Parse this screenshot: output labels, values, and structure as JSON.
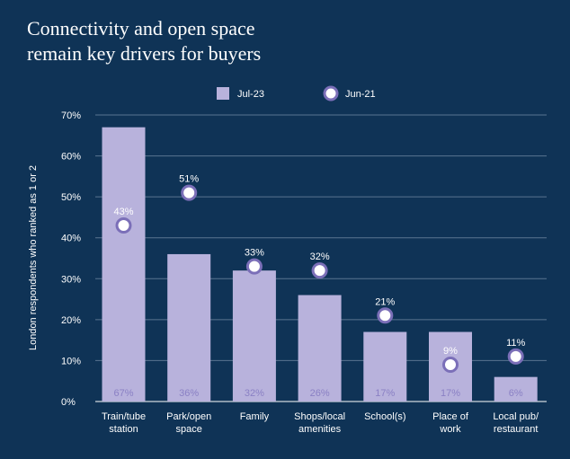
{
  "title_lines": [
    "Connectivity and open space",
    "remain key drivers for buyers"
  ],
  "chart_data": {
    "type": "bar",
    "title": "Connectivity and open space remain key drivers for buyers",
    "ylabel": "London respondents who ranked as 1 or 2",
    "xlabel": "",
    "ylim": [
      0,
      70
    ],
    "yticks": [
      0,
      10,
      20,
      30,
      40,
      50,
      60,
      70
    ],
    "ytick_labels": [
      "0%",
      "10%",
      "20%",
      "30%",
      "40%",
      "50%",
      "60%",
      "70%"
    ],
    "grid": true,
    "legend_position": "top",
    "categories": [
      [
        "Train/tube",
        "station"
      ],
      [
        "Park/open",
        "space"
      ],
      [
        "Family"
      ],
      [
        "Shops/local",
        "amenities"
      ],
      [
        "School(s)"
      ],
      [
        "Place of",
        "work"
      ],
      [
        "Local pub/",
        "restaurant"
      ]
    ],
    "series": [
      {
        "name": "Jul-23",
        "kind": "bar",
        "color": "#b8b2dc",
        "values": [
          67,
          36,
          32,
          26,
          17,
          17,
          6
        ],
        "labels": [
          "67%",
          "36%",
          "32%",
          "26%",
          "17%",
          "17%",
          "6%"
        ]
      },
      {
        "name": "Jun-21",
        "kind": "point",
        "color": "#ffffff",
        "stroke": "#7b6fb8",
        "values": [
          43,
          51,
          33,
          32,
          21,
          9,
          11
        ],
        "labels": [
          "43%",
          "51%",
          "33%",
          "32%",
          "21%",
          "9%",
          "11%"
        ]
      }
    ]
  }
}
